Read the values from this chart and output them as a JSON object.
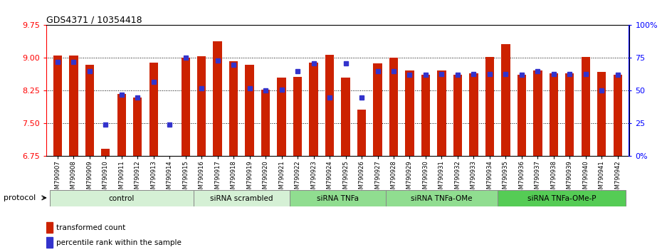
{
  "title": "GDS4371 / 10354418",
  "samples": [
    "GSM790907",
    "GSM790908",
    "GSM790909",
    "GSM790910",
    "GSM790911",
    "GSM790912",
    "GSM790913",
    "GSM790914",
    "GSM790915",
    "GSM790916",
    "GSM790917",
    "GSM790918",
    "GSM790919",
    "GSM790920",
    "GSM790921",
    "GSM790922",
    "GSM790923",
    "GSM790924",
    "GSM790925",
    "GSM790926",
    "GSM790927",
    "GSM790928",
    "GSM790929",
    "GSM790930",
    "GSM790931",
    "GSM790932",
    "GSM790933",
    "GSM790934",
    "GSM790935",
    "GSM790936",
    "GSM790937",
    "GSM790938",
    "GSM790939",
    "GSM790940",
    "GSM790941",
    "GSM790942"
  ],
  "red_values": [
    9.05,
    9.05,
    8.85,
    6.92,
    8.18,
    8.1,
    8.9,
    6.72,
    9.0,
    9.04,
    9.38,
    8.92,
    8.85,
    8.28,
    8.55,
    8.57,
    8.9,
    9.07,
    8.55,
    7.82,
    8.87,
    9.0,
    8.72,
    8.62,
    8.72,
    8.62,
    8.65,
    9.03,
    9.32,
    8.62,
    8.72,
    8.65,
    8.65,
    9.03,
    8.68,
    8.62
  ],
  "blue_percentiles": [
    72,
    72,
    65,
    24,
    47,
    45,
    57,
    24,
    75,
    52,
    73,
    70,
    52,
    50,
    51,
    65,
    71,
    45,
    71,
    45,
    65,
    65,
    62,
    62,
    63,
    62,
    63,
    63,
    63,
    62,
    65,
    63,
    63,
    63,
    50,
    62
  ],
  "groups": [
    {
      "label": "control",
      "start": 0,
      "end": 9,
      "color": "#d5f0d5"
    },
    {
      "label": "siRNA scrambled",
      "start": 9,
      "end": 15,
      "color": "#d5f0d5"
    },
    {
      "label": "siRNA TNFa",
      "start": 15,
      "end": 21,
      "color": "#90dd90"
    },
    {
      "label": "siRNA TNFa-OMe",
      "start": 21,
      "end": 28,
      "color": "#90dd90"
    },
    {
      "label": "siRNA TNFa-OMe-P",
      "start": 28,
      "end": 36,
      "color": "#55cc55"
    }
  ],
  "ylim_left": [
    6.75,
    9.75
  ],
  "ylim_right": [
    0,
    100
  ],
  "yticks_left": [
    6.75,
    7.5,
    8.25,
    9.0,
    9.75
  ],
  "yticks_right": [
    0,
    25,
    50,
    75,
    100
  ],
  "ytick_labels_right": [
    "0%",
    "25",
    "50",
    "75",
    "100%"
  ],
  "bar_color": "#cc2200",
  "dot_color": "#3333cc",
  "background_color": "#ffffff",
  "dotted_line_y": [
    7.5,
    8.25,
    9.0
  ],
  "bar_width": 0.55
}
